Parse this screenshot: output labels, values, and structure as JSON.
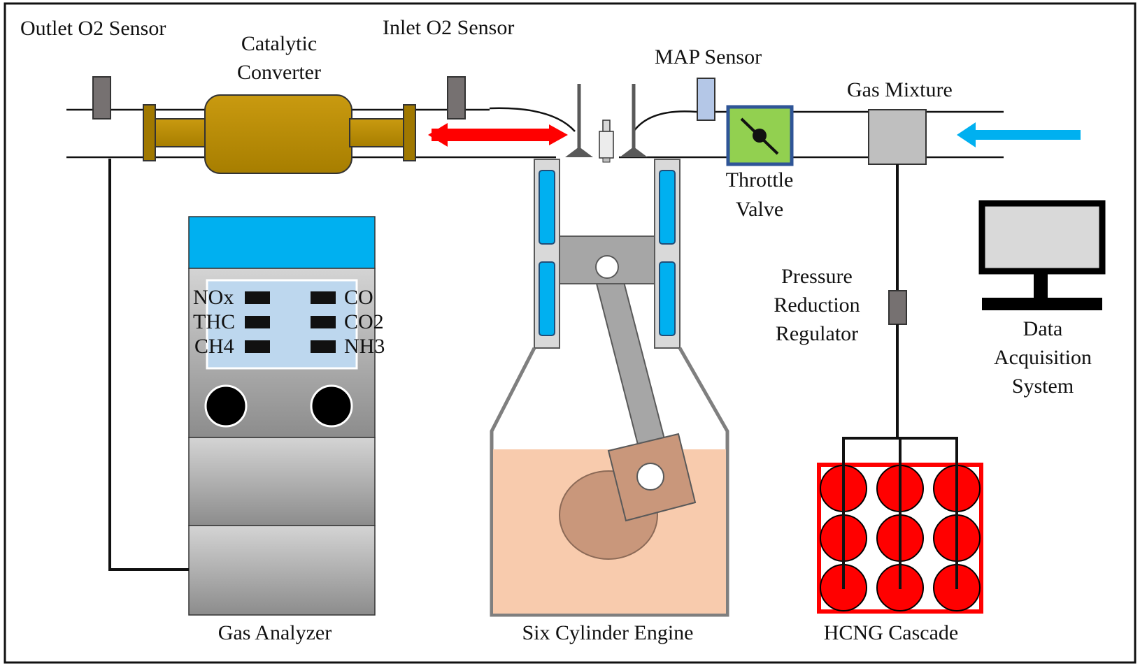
{
  "labels": {
    "outlet_o2": "Outlet O2 Sensor",
    "catalytic_line1": "Catalytic",
    "catalytic_line2": "Converter",
    "inlet_o2": "Inlet O2 Sensor",
    "map_sensor": "MAP Sensor",
    "gas_mixture": "Gas Mixture",
    "throttle_line1": "Throttle",
    "throttle_line2": "Valve",
    "pressure_line1": "Pressure",
    "pressure_line2": "Reduction",
    "pressure_line3": "Regulator",
    "daq_line1": "Data",
    "daq_line2": "Acquisition",
    "daq_line3": "System",
    "gas_analyzer": "Gas Analyzer",
    "engine": "Six Cylinder Engine",
    "hcng": "HCNG Cascade"
  },
  "analyzer_gases": {
    "left": [
      "NOx",
      "THC",
      "CH4"
    ],
    "right": [
      "CO",
      "CO2",
      "NH3"
    ]
  },
  "colors": {
    "exhaust_arrow": "#ff0000",
    "intake_arrow": "#00b0f0",
    "catalytic": "#bf9000",
    "throttle": "#92d050",
    "analyzer_top": "#00b0f0",
    "analyzer_screen": "#bdd7ee",
    "coolant": "#00b0f0",
    "crankcase_oil": "#f8cbad",
    "cylinders": "#ff0000"
  },
  "icons": [
    "monitor-icon",
    "throttle-butterfly-icon",
    "spark-plug-icon"
  ]
}
